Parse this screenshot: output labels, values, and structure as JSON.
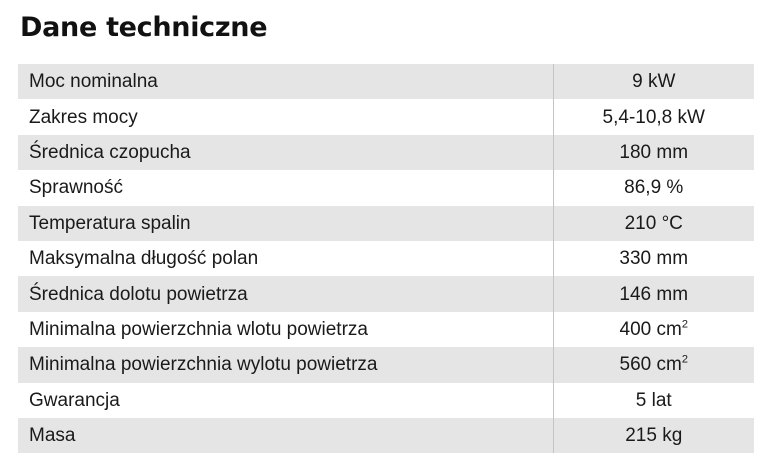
{
  "title": "Dane techniczne",
  "rows": [
    {
      "label": "Moc nominalna",
      "value": "9 kW"
    },
    {
      "label": "Zakres mocy",
      "value": "5,4-10,8 kW"
    },
    {
      "label": "Średnica czopucha",
      "value": "180 mm"
    },
    {
      "label": "Sprawność",
      "value": "86,9 %"
    },
    {
      "label": "Temperatura spalin",
      "value": "210 °C"
    },
    {
      "label": "Maksymalna długość polan",
      "value": "330 mm"
    },
    {
      "label": "Średnica dolotu powietrza",
      "value": "146 mm"
    },
    {
      "label": "Minimalna powierzchnia wlotu powietrza",
      "value": "400 cm",
      "sup": "2"
    },
    {
      "label": "Minimalna powierzchnia wylotu powietrza",
      "value": "560 cm",
      "sup": "2"
    },
    {
      "label": "Gwarancja",
      "value": "5 lat"
    },
    {
      "label": "Masa",
      "value": "215 kg"
    }
  ]
}
